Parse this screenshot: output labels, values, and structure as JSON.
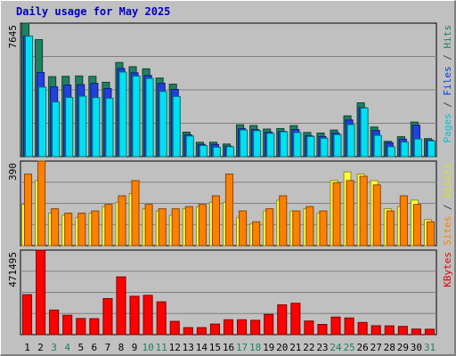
{
  "chart_data": {
    "type": "bar",
    "title": "Daily usage for May 2025",
    "days": [
      "1",
      "2",
      "3",
      "4",
      "5",
      "6",
      "7",
      "8",
      "9",
      "10",
      "11",
      "12",
      "13",
      "14",
      "15",
      "16",
      "17",
      "18",
      "19",
      "20",
      "21",
      "22",
      "23",
      "24",
      "25",
      "26",
      "27",
      "28",
      "29",
      "30",
      "31"
    ],
    "weekend_days": [
      "3",
      "4",
      "10",
      "11",
      "17",
      "18",
      "24",
      "25",
      "31"
    ],
    "panels": [
      {
        "max_label": "7645",
        "ymax": 7645,
        "axis_labels": [
          {
            "text": "Pages",
            "color": "#00c0d0"
          },
          {
            "text": " / ",
            "color": "#404040"
          },
          {
            "text": "Files",
            "color": "#0040e0"
          },
          {
            "text": " / ",
            "color": "#404040"
          },
          {
            "text": "Hits",
            "color": "#208060"
          }
        ],
        "series": [
          {
            "name": "Hits",
            "color": "#208060",
            "values": [
              7645,
              6700,
              4580,
              4600,
              4620,
              4600,
              4260,
              5390,
              5150,
              5030,
              4500,
              4150,
              1402,
              823,
              826,
              722,
              1826,
              1782,
              1578,
              1608,
              1777,
              1384,
              1352,
              1520,
              2335,
              3080,
              1696,
              877,
              1140,
              1979,
              1034
            ]
          },
          {
            "name": "Files",
            "color": "#2040e0",
            "values": [
              6900,
              4820,
              4000,
              4100,
              4120,
              4200,
              3900,
              5050,
              4800,
              4650,
              4200,
              3850,
              1250,
              700,
              700,
              600,
              1600,
              1550,
              1400,
              1450,
              1550,
              1200,
              1150,
              1350,
              2100,
              2800,
              1500,
              800,
              1000,
              1800,
              950
            ]
          },
          {
            "name": "Pages",
            "color": "#00e0f0",
            "values": [
              6900,
              3980,
              3130,
              3390,
              3460,
              3380,
              3340,
              4840,
              4610,
              4480,
              3730,
              3440,
              1180,
              638,
              539,
              570,
              1526,
              1482,
              1334,
              1423,
              1378,
              1152,
              1054,
              1262,
              1834,
              2785,
              1216,
              569,
              833,
              1008,
              901
            ]
          }
        ]
      },
      {
        "max_label": "390",
        "ymax": 390,
        "axis_labels": [
          {
            "text": "Sites",
            "color": "#ff8000"
          },
          {
            "text": " / ",
            "color": "#404040"
          },
          {
            "text": "Visits",
            "color": "#e0e020"
          }
        ],
        "series": [
          {
            "name": "Visits",
            "color": "#ffff40",
            "values": [
              190,
              300,
              150,
              140,
              130,
              150,
              180,
              200,
              240,
              170,
              160,
              140,
              170,
              180,
              200,
              200,
              130,
              100,
              160,
              210,
              160,
              170,
              150,
              300,
              340,
              330,
              300,
              170,
              180,
              210,
              120
            ]
          },
          {
            "name": "Sites",
            "color": "#ff8000",
            "values": [
              330,
              390,
              170,
              150,
              150,
              160,
              190,
              230,
              300,
              190,
              170,
              170,
              180,
              190,
              230,
              330,
              160,
              110,
              170,
              230,
              160,
              180,
              160,
              290,
              300,
              320,
              280,
              160,
              230,
              190,
              110
            ]
          }
        ]
      },
      {
        "max_label": "471495",
        "ymax": 471495,
        "axis_labels": [
          {
            "text": "KBytes",
            "color": "#e00000"
          }
        ],
        "series": [
          {
            "name": "KBytes",
            "color": "#ff0000",
            "values": [
              223000,
              471495,
              137000,
              108000,
              90000,
              89000,
              201000,
              322000,
              214000,
              219000,
              183000,
              74000,
              39000,
              39000,
              59000,
              83000,
              83000,
              80000,
              113000,
              166000,
              175000,
              76000,
              57000,
              98000,
              93000,
              68000,
              50000,
              49000,
              46000,
              31000,
              30000
            ]
          }
        ]
      }
    ]
  }
}
